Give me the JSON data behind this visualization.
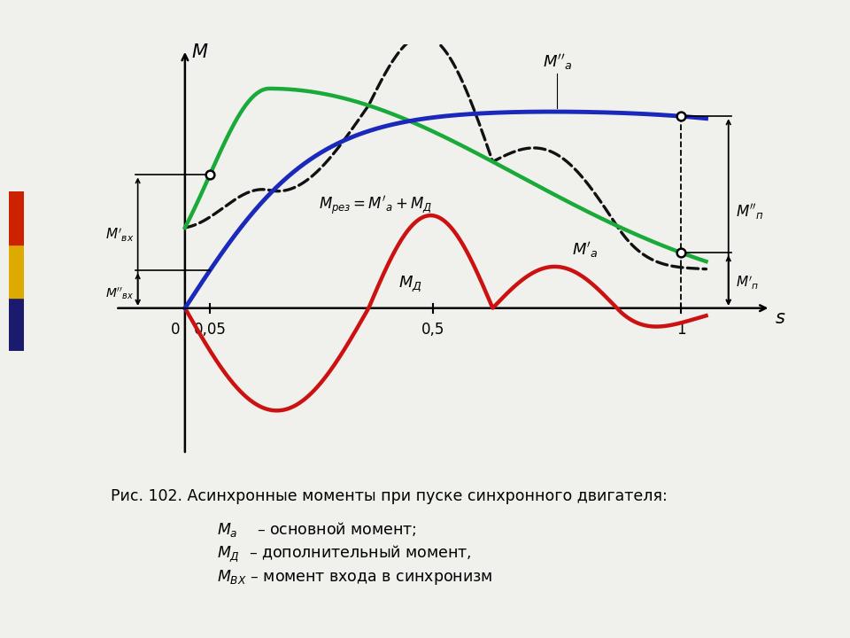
{
  "background_color": "#f0f0ec",
  "xlim": [
    -0.15,
    1.22
  ],
  "ylim": [
    -0.62,
    1.08
  ],
  "blue_color": "#1a28bb",
  "green_color": "#1aaa3a",
  "red_color": "#cc1111",
  "dashed_color": "#111111",
  "lw_main": 3.2,
  "lw_dashed": 2.4,
  "font_size": 13,
  "caption_fontsize": 12.5,
  "caption_line1": "Рис. 102. Асинхронные моменты при пуске синхронного двигателя:",
  "side_bar_colors": [
    "#1a1a6e",
    "#ddaa00",
    "#cc2200"
  ]
}
